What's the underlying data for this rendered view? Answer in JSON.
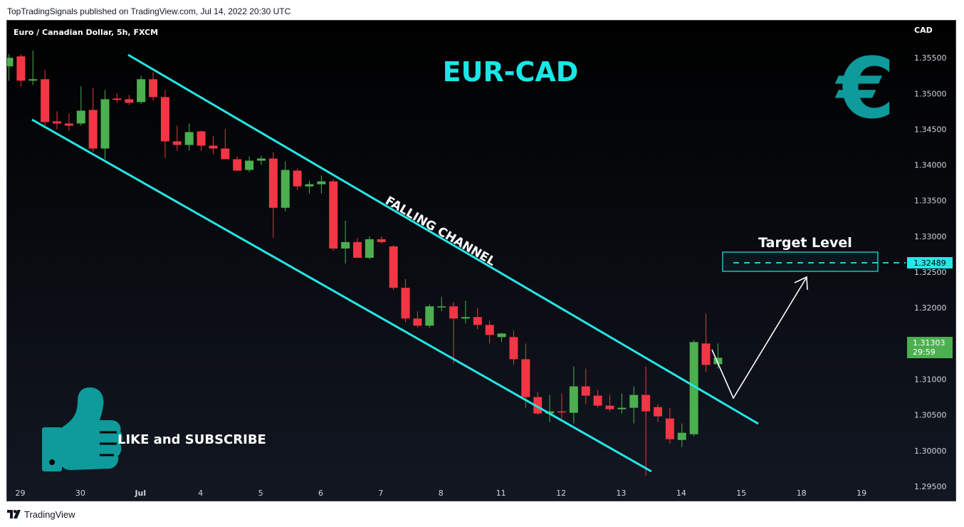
{
  "header": {
    "published_text": "TopTradingSignals published on TradingView.com, Jul 14, 2022 20:30 UTC"
  },
  "footer": {
    "brand": "TradingView"
  },
  "chart_data": {
    "type": "candlestick",
    "symbol_title": "Euro / Canadian Dollar, 5h, FXCM",
    "overlay_title": "EUR-CAD",
    "currency_label": "CAD",
    "currency_icon": "euro-icon",
    "y_ticks": [
      "1.35500",
      "1.35000",
      "1.34500",
      "1.34000",
      "1.33500",
      "1.33000",
      "1.32500",
      "1.32000",
      "1.31500",
      "1.31000",
      "1.30500",
      "1.30000",
      "1.29500"
    ],
    "ylim": [
      1.2928,
      1.3602
    ],
    "x_tick_labels": [
      {
        "label": "29",
        "index": 0
      },
      {
        "label": "30",
        "index": 5
      },
      {
        "label": "Jul",
        "index": 10
      },
      {
        "label": "4",
        "index": 15
      },
      {
        "label": "5",
        "index": 20
      },
      {
        "label": "6",
        "index": 25
      },
      {
        "label": "7",
        "index": 30
      },
      {
        "label": "8",
        "index": 35
      },
      {
        "label": "11",
        "index": 40
      },
      {
        "label": "12",
        "index": 45
      },
      {
        "label": "13",
        "index": 50
      },
      {
        "label": "14",
        "index": 55
      },
      {
        "label": "15",
        "index": 60
      },
      {
        "label": "18",
        "index": 65
      },
      {
        "label": "19",
        "index": 70
      }
    ],
    "candles": [
      {
        "o": 1.3538,
        "h": 1.3555,
        "l": 1.3518,
        "c": 1.355
      },
      {
        "o": 1.3552,
        "h": 1.3555,
        "l": 1.351,
        "c": 1.3518
      },
      {
        "o": 1.3518,
        "h": 1.356,
        "l": 1.3512,
        "c": 1.352
      },
      {
        "o": 1.352,
        "h": 1.3533,
        "l": 1.3455,
        "c": 1.346
      },
      {
        "o": 1.3461,
        "h": 1.3475,
        "l": 1.345,
        "c": 1.3458
      },
      {
        "o": 1.3458,
        "h": 1.3472,
        "l": 1.3448,
        "c": 1.3455
      },
      {
        "o": 1.3458,
        "h": 1.351,
        "l": 1.3455,
        "c": 1.3476
      },
      {
        "o": 1.3477,
        "h": 1.3508,
        "l": 1.3418,
        "c": 1.3423
      },
      {
        "o": 1.3423,
        "h": 1.3505,
        "l": 1.3408,
        "c": 1.3492
      },
      {
        "o": 1.3493,
        "h": 1.35,
        "l": 1.3487,
        "c": 1.3491
      },
      {
        "o": 1.3492,
        "h": 1.3498,
        "l": 1.3484,
        "c": 1.3487
      },
      {
        "o": 1.3488,
        "h": 1.3525,
        "l": 1.3485,
        "c": 1.352
      },
      {
        "o": 1.352,
        "h": 1.353,
        "l": 1.349,
        "c": 1.3495
      },
      {
        "o": 1.3495,
        "h": 1.3505,
        "l": 1.341,
        "c": 1.3433
      },
      {
        "o": 1.3433,
        "h": 1.3455,
        "l": 1.342,
        "c": 1.3428
      },
      {
        "o": 1.3428,
        "h": 1.3458,
        "l": 1.342,
        "c": 1.3446
      },
      {
        "o": 1.3447,
        "h": 1.3448,
        "l": 1.342,
        "c": 1.3427
      },
      {
        "o": 1.3427,
        "h": 1.344,
        "l": 1.3415,
        "c": 1.3423
      },
      {
        "o": 1.3423,
        "h": 1.345,
        "l": 1.341,
        "c": 1.3408
      },
      {
        "o": 1.3408,
        "h": 1.3412,
        "l": 1.3395,
        "c": 1.3392
      },
      {
        "o": 1.3393,
        "h": 1.3412,
        "l": 1.339,
        "c": 1.3406
      },
      {
        "o": 1.3406,
        "h": 1.3413,
        "l": 1.34,
        "c": 1.3409
      },
      {
        "o": 1.3409,
        "h": 1.3418,
        "l": 1.3298,
        "c": 1.334
      },
      {
        "o": 1.334,
        "h": 1.3405,
        "l": 1.3335,
        "c": 1.3393
      },
      {
        "o": 1.3392,
        "h": 1.3395,
        "l": 1.3365,
        "c": 1.337
      },
      {
        "o": 1.337,
        "h": 1.3378,
        "l": 1.336,
        "c": 1.3373
      },
      {
        "o": 1.3373,
        "h": 1.3385,
        "l": 1.336,
        "c": 1.3377
      },
      {
        "o": 1.3377,
        "h": 1.338,
        "l": 1.328,
        "c": 1.3283
      },
      {
        "o": 1.3283,
        "h": 1.3322,
        "l": 1.3262,
        "c": 1.3292
      },
      {
        "o": 1.3292,
        "h": 1.3298,
        "l": 1.3272,
        "c": 1.327
      },
      {
        "o": 1.327,
        "h": 1.33,
        "l": 1.3268,
        "c": 1.3296
      },
      {
        "o": 1.3296,
        "h": 1.33,
        "l": 1.329,
        "c": 1.3292
      },
      {
        "o": 1.3286,
        "h": 1.3288,
        "l": 1.3225,
        "c": 1.3228
      },
      {
        "o": 1.3228,
        "h": 1.324,
        "l": 1.318,
        "c": 1.3185
      },
      {
        "o": 1.3185,
        "h": 1.3195,
        "l": 1.3172,
        "c": 1.3175
      },
      {
        "o": 1.3175,
        "h": 1.3205,
        "l": 1.3172,
        "c": 1.3202
      },
      {
        "o": 1.3202,
        "h": 1.3215,
        "l": 1.3195,
        "c": 1.3202
      },
      {
        "o": 1.3202,
        "h": 1.3208,
        "l": 1.3122,
        "c": 1.3185
      },
      {
        "o": 1.3185,
        "h": 1.321,
        "l": 1.3178,
        "c": 1.3187
      },
      {
        "o": 1.3187,
        "h": 1.32,
        "l": 1.317,
        "c": 1.3176
      },
      {
        "o": 1.3176,
        "h": 1.3182,
        "l": 1.315,
        "c": 1.3162
      },
      {
        "o": 1.3159,
        "h": 1.3165,
        "l": 1.3152,
        "c": 1.3164
      },
      {
        "o": 1.3159,
        "h": 1.3168,
        "l": 1.312,
        "c": 1.3128
      },
      {
        "o": 1.3128,
        "h": 1.315,
        "l": 1.306,
        "c": 1.3075
      },
      {
        "o": 1.3075,
        "h": 1.3082,
        "l": 1.305,
        "c": 1.3052
      },
      {
        "o": 1.3052,
        "h": 1.3078,
        "l": 1.304,
        "c": 1.3055
      },
      {
        "o": 1.3055,
        "h": 1.308,
        "l": 1.3045,
        "c": 1.3054
      },
      {
        "o": 1.3053,
        "h": 1.3118,
        "l": 1.3038,
        "c": 1.309
      },
      {
        "o": 1.309,
        "h": 1.3115,
        "l": 1.3065,
        "c": 1.3077
      },
      {
        "o": 1.3077,
        "h": 1.3085,
        "l": 1.306,
        "c": 1.3063
      },
      {
        "o": 1.3063,
        "h": 1.3078,
        "l": 1.3055,
        "c": 1.3058
      },
      {
        "o": 1.3058,
        "h": 1.308,
        "l": 1.3052,
        "c": 1.306
      },
      {
        "o": 1.306,
        "h": 1.309,
        "l": 1.3038,
        "c": 1.3078
      },
      {
        "o": 1.3078,
        "h": 1.3118,
        "l": 1.2965,
        "c": 1.3055
      },
      {
        "o": 1.3061,
        "h": 1.3065,
        "l": 1.304,
        "c": 1.3048
      },
      {
        "o": 1.3045,
        "h": 1.306,
        "l": 1.301,
        "c": 1.3016
      },
      {
        "o": 1.3015,
        "h": 1.3038,
        "l": 1.3005,
        "c": 1.3025
      },
      {
        "o": 1.3023,
        "h": 1.3155,
        "l": 1.302,
        "c": 1.3152
      },
      {
        "o": 1.315,
        "h": 1.3192,
        "l": 1.311,
        "c": 1.312
      },
      {
        "o": 1.3121,
        "h": 1.315,
        "l": 1.3115,
        "c": 1.313
      }
    ],
    "price_label": {
      "value": "1.31303",
      "countdown": "29:59"
    },
    "target": {
      "value": "1.32489",
      "label": "Target Level"
    },
    "channel_label": "FALLING CHANNEL",
    "cta_label": "LIKE and SUBSCRIBE",
    "colors": {
      "up": "#4caf50",
      "down": "#f23645",
      "channel": "#26e6e6",
      "title": "#19e6e6",
      "euro": "#0f9a9c",
      "target_box": "#26e6e6",
      "axis_text": "#d1d4dc",
      "last_price_bg": "#4caf50"
    },
    "grid": false,
    "legend": "none"
  }
}
